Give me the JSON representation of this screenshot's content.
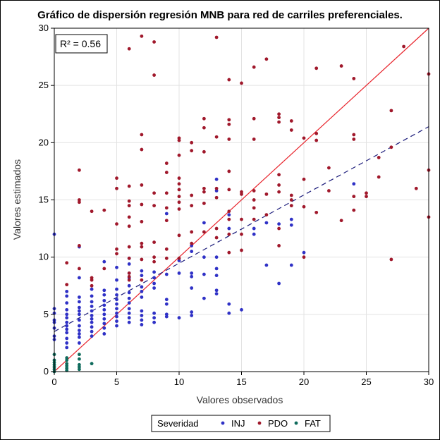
{
  "chart_data": {
    "type": "scatter",
    "title": "Gráfico de dispersión regresión MNB para red de carriles preferenciales.",
    "xlabel": "Valores observados",
    "ylabel": "Valores estimados",
    "xlim": [
      0,
      30
    ],
    "ylim": [
      0,
      30
    ],
    "xticks": [
      0,
      5,
      10,
      15,
      20,
      25,
      30
    ],
    "yticks": [
      0,
      5,
      10,
      15,
      20,
      25,
      30
    ],
    "grid": true,
    "annotation": "R² = 0.56",
    "legend": {
      "title": "Severidad",
      "placement": "bottom-center",
      "entries": [
        "INJ",
        "PDO",
        "FAT"
      ]
    },
    "lines": [
      {
        "kind": "identity",
        "style": "solid",
        "color": "#e8232b",
        "points": [
          [
            0,
            0
          ],
          [
            30,
            30
          ]
        ]
      },
      {
        "kind": "fit",
        "style": "dashed",
        "color": "#1a1a7a",
        "points": [
          [
            0,
            3.5
          ],
          [
            30,
            21.4
          ]
        ]
      }
    ],
    "series": [
      {
        "name": "INJ",
        "color": "#2f31c6",
        "points": [
          [
            0,
            12.0
          ],
          [
            0,
            5.5
          ],
          [
            0,
            5.1
          ],
          [
            0,
            4.5
          ],
          [
            0,
            4.3
          ],
          [
            0,
            3.8
          ],
          [
            0,
            3.1
          ],
          [
            0,
            2.8
          ],
          [
            1,
            7.0
          ],
          [
            1,
            6.6
          ],
          [
            1,
            6.0
          ],
          [
            1,
            5.4
          ],
          [
            1,
            5.0
          ],
          [
            1,
            4.7
          ],
          [
            1,
            4.3
          ],
          [
            1,
            4.0
          ],
          [
            1,
            3.7
          ],
          [
            1,
            3.4
          ],
          [
            1,
            2.9
          ],
          [
            1,
            2.5
          ],
          [
            1,
            2.1
          ],
          [
            2,
            10.9
          ],
          [
            2,
            8.2
          ],
          [
            2,
            6.5
          ],
          [
            2,
            6.1
          ],
          [
            2,
            5.6
          ],
          [
            2,
            5.3
          ],
          [
            2,
            5.0
          ],
          [
            2,
            4.5
          ],
          [
            2,
            4.0
          ],
          [
            2,
            3.6
          ],
          [
            2,
            3.3
          ],
          [
            2,
            3.0
          ],
          [
            2,
            2.5
          ],
          [
            3,
            7.2
          ],
          [
            3,
            6.6
          ],
          [
            3,
            6.1
          ],
          [
            3,
            5.7
          ],
          [
            3,
            5.3
          ],
          [
            3,
            4.9
          ],
          [
            3,
            4.6
          ],
          [
            3,
            4.3
          ],
          [
            3,
            3.9
          ],
          [
            3,
            3.5
          ],
          [
            3,
            3.1
          ],
          [
            4,
            9.6
          ],
          [
            4,
            7.1
          ],
          [
            4,
            6.7
          ],
          [
            4,
            6.2
          ],
          [
            4,
            5.8
          ],
          [
            4,
            5.4
          ],
          [
            4,
            5.0
          ],
          [
            4,
            4.6
          ],
          [
            4,
            4.2
          ],
          [
            4,
            3.8
          ],
          [
            4,
            3.3
          ],
          [
            5,
            9.1
          ],
          [
            5,
            8.0
          ],
          [
            5,
            7.2
          ],
          [
            5,
            6.7
          ],
          [
            5,
            6.3
          ],
          [
            5,
            5.9
          ],
          [
            5,
            5.5
          ],
          [
            5,
            5.1
          ],
          [
            5,
            4.8
          ],
          [
            5,
            4.4
          ],
          [
            5,
            4.0
          ],
          [
            6,
            9.9
          ],
          [
            6,
            9.4
          ],
          [
            6,
            8.6
          ],
          [
            6,
            8.2
          ],
          [
            6,
            7.5
          ],
          [
            6,
            6.9
          ],
          [
            6,
            6.4
          ],
          [
            6,
            6.0
          ],
          [
            6,
            5.5
          ],
          [
            6,
            5.1
          ],
          [
            6,
            4.7
          ],
          [
            6,
            4.3
          ],
          [
            7,
            8.8
          ],
          [
            7,
            8.4
          ],
          [
            7,
            7.4
          ],
          [
            7,
            7.0
          ],
          [
            7,
            6.5
          ],
          [
            7,
            5.3
          ],
          [
            7,
            4.9
          ],
          [
            7,
            4.5
          ],
          [
            7,
            4.1
          ],
          [
            8,
            8.7
          ],
          [
            8,
            8.2
          ],
          [
            8,
            7.7
          ],
          [
            8,
            7.3
          ],
          [
            8,
            5.1
          ],
          [
            8,
            4.7
          ],
          [
            8,
            4.3
          ],
          [
            9,
            13.8
          ],
          [
            9,
            8.5
          ],
          [
            9,
            6.3
          ],
          [
            9,
            5.9
          ],
          [
            9,
            5.0
          ],
          [
            9,
            4.8
          ],
          [
            10,
            9.7
          ],
          [
            10,
            8.6
          ],
          [
            10,
            4.7
          ],
          [
            11,
            11.0
          ],
          [
            11,
            10.5
          ],
          [
            11,
            8.6
          ],
          [
            11,
            8.3
          ],
          [
            11,
            7.3
          ],
          [
            11,
            5.2
          ],
          [
            11,
            4.9
          ],
          [
            12,
            13.0
          ],
          [
            12,
            10.0
          ],
          [
            12,
            8.5
          ],
          [
            12,
            6.4
          ],
          [
            13,
            16.8
          ],
          [
            13,
            15.8
          ],
          [
            13,
            10.0
          ],
          [
            13,
            9.0
          ],
          [
            13,
            8.4
          ],
          [
            13,
            7.1
          ],
          [
            13,
            6.8
          ],
          [
            14,
            13.7
          ],
          [
            14,
            12.5
          ],
          [
            14,
            5.9
          ],
          [
            14,
            5.1
          ],
          [
            15,
            5.4
          ],
          [
            16,
            12.5
          ],
          [
            16,
            12.0
          ],
          [
            17,
            13.0
          ],
          [
            17,
            9.3
          ],
          [
            18,
            12.9
          ],
          [
            18,
            7.7
          ],
          [
            19,
            13.3
          ],
          [
            19,
            12.8
          ],
          [
            19,
            9.3
          ],
          [
            20,
            10.4
          ],
          [
            24,
            16.4
          ]
        ]
      },
      {
        "name": "PDO",
        "color": "#a0182b",
        "points": [
          [
            1,
            9.5
          ],
          [
            1,
            7.6
          ],
          [
            2,
            17.6
          ],
          [
            2,
            15.0
          ],
          [
            2,
            14.8
          ],
          [
            2,
            11.0
          ],
          [
            2,
            9.0
          ],
          [
            3,
            14.0
          ],
          [
            3,
            8.2
          ],
          [
            3,
            8.0
          ],
          [
            3,
            7.5
          ],
          [
            4,
            14.1
          ],
          [
            4,
            9.0
          ],
          [
            5,
            16.9
          ],
          [
            5,
            16.0
          ],
          [
            5,
            12.9
          ],
          [
            5,
            10.7
          ],
          [
            5,
            10.3
          ],
          [
            6,
            28.2
          ],
          [
            6,
            16.2
          ],
          [
            6,
            14.9
          ],
          [
            6,
            14.5
          ],
          [
            6,
            13.5
          ],
          [
            6,
            12.7
          ],
          [
            6,
            10.9
          ],
          [
            6,
            9.9
          ],
          [
            6,
            8.6
          ],
          [
            6,
            8.3
          ],
          [
            6,
            8.0
          ],
          [
            7,
            29.3
          ],
          [
            7,
            20.7
          ],
          [
            7,
            19.4
          ],
          [
            7,
            16.3
          ],
          [
            7,
            14.6
          ],
          [
            7,
            13.1
          ],
          [
            7,
            11.2
          ],
          [
            7,
            10.9
          ],
          [
            7,
            9.8
          ],
          [
            7,
            8.0
          ],
          [
            8,
            28.8
          ],
          [
            8,
            25.9
          ],
          [
            8,
            15.6
          ],
          [
            8,
            14.5
          ],
          [
            8,
            11.3
          ],
          [
            8,
            10.0
          ],
          [
            8,
            9.6
          ],
          [
            9,
            18.2
          ],
          [
            9,
            17.4
          ],
          [
            9,
            15.6
          ],
          [
            9,
            14.3
          ],
          [
            9,
            13.2
          ],
          [
            9,
            10.7
          ],
          [
            9,
            9.9
          ],
          [
            10,
            20.4
          ],
          [
            10,
            20.2
          ],
          [
            10,
            18.9
          ],
          [
            10,
            16.9
          ],
          [
            10,
            16.4
          ],
          [
            10,
            15.9
          ],
          [
            10,
            15.3
          ],
          [
            10,
            14.8
          ],
          [
            10,
            14.2
          ],
          [
            10,
            11.9
          ],
          [
            10,
            9.9
          ],
          [
            11,
            20.0
          ],
          [
            11,
            19.3
          ],
          [
            11,
            15.4
          ],
          [
            11,
            14.5
          ],
          [
            11,
            12.2
          ],
          [
            11,
            11.2
          ],
          [
            12,
            22.1
          ],
          [
            12,
            21.3
          ],
          [
            12,
            19.2
          ],
          [
            12,
            16.0
          ],
          [
            12,
            15.7
          ],
          [
            12,
            14.7
          ],
          [
            12,
            12.2
          ],
          [
            13,
            29.2
          ],
          [
            13,
            20.5
          ],
          [
            13,
            16.0
          ],
          [
            13,
            15.2
          ],
          [
            13,
            12.5
          ],
          [
            13,
            11.7
          ],
          [
            14,
            25.5
          ],
          [
            14,
            22.0
          ],
          [
            14,
            21.6
          ],
          [
            14,
            20.3
          ],
          [
            14,
            17.5
          ],
          [
            14,
            15.9
          ],
          [
            14,
            14.0
          ],
          [
            14,
            13.3
          ],
          [
            14,
            12.0
          ],
          [
            14,
            10.4
          ],
          [
            15,
            25.2
          ],
          [
            15,
            15.7
          ],
          [
            15,
            15.5
          ],
          [
            15,
            13.3
          ],
          [
            15,
            12.0
          ],
          [
            15,
            10.6
          ],
          [
            16,
            26.6
          ],
          [
            16,
            22.1
          ],
          [
            16,
            20.3
          ],
          [
            16,
            15.8
          ],
          [
            16,
            15.0
          ],
          [
            16,
            14.3
          ],
          [
            16,
            13.3
          ],
          [
            17,
            27.3
          ],
          [
            17,
            15.5
          ],
          [
            17,
            13.7
          ],
          [
            18,
            22.5
          ],
          [
            18,
            22.2
          ],
          [
            18,
            21.8
          ],
          [
            18,
            17.2
          ],
          [
            18,
            16.3
          ],
          [
            18,
            15.7
          ],
          [
            18,
            12.5
          ],
          [
            18,
            11.0
          ],
          [
            19,
            21.9
          ],
          [
            19,
            21.1
          ],
          [
            19,
            15.4
          ],
          [
            19,
            15.0
          ],
          [
            19,
            14.5
          ],
          [
            20,
            20.4
          ],
          [
            20,
            16.8
          ],
          [
            20,
            14.4
          ],
          [
            20,
            10.0
          ],
          [
            21,
            26.5
          ],
          [
            21,
            20.8
          ],
          [
            21,
            20.2
          ],
          [
            21,
            13.9
          ],
          [
            22,
            17.8
          ],
          [
            22,
            15.8
          ],
          [
            23,
            26.7
          ],
          [
            23,
            13.2
          ],
          [
            24,
            25.6
          ],
          [
            24,
            20.7
          ],
          [
            24,
            20.3
          ],
          [
            24,
            15.3
          ],
          [
            24,
            14.1
          ],
          [
            25,
            15.6
          ],
          [
            25,
            15.3
          ],
          [
            26,
            18.7
          ],
          [
            26,
            17.0
          ],
          [
            27,
            22.8
          ],
          [
            27,
            19.6
          ],
          [
            27,
            9.8
          ],
          [
            28,
            28.4
          ],
          [
            29,
            16.0
          ],
          [
            30,
            26.0
          ],
          [
            30,
            17.6
          ],
          [
            30,
            13.5
          ]
        ]
      },
      {
        "name": "FAT",
        "color": "#0f6b5c",
        "points": [
          [
            0,
            1.5
          ],
          [
            0,
            1.0
          ],
          [
            0,
            0.8
          ],
          [
            0,
            0.6
          ],
          [
            0,
            0.4
          ],
          [
            0,
            0.2
          ],
          [
            0,
            0.0
          ],
          [
            1,
            1.2
          ],
          [
            1,
            1.0
          ],
          [
            1,
            0.7
          ],
          [
            1,
            0.5
          ],
          [
            1,
            0.3
          ],
          [
            1,
            0.1
          ],
          [
            2,
            1.5
          ],
          [
            2,
            1.1
          ],
          [
            2,
            0.6
          ],
          [
            2,
            0.4
          ],
          [
            2,
            0.2
          ],
          [
            3,
            0.7
          ]
        ]
      }
    ]
  }
}
